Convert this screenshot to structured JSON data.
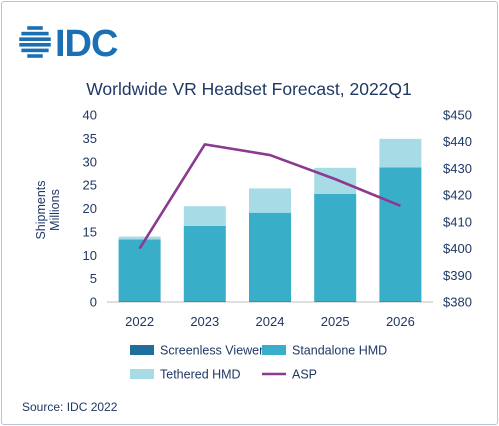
{
  "logo": {
    "text": "IDC",
    "color": "#1b6fb5"
  },
  "chart_data": {
    "type": "bar",
    "subtype": "stacked-bar-with-line",
    "title": "Worldwide VR Headset Forecast, 2022Q1",
    "ylabel": "Shipments\nMillions",
    "y2label": "",
    "categories": [
      "2022",
      "2023",
      "2024",
      "2025",
      "2026"
    ],
    "ylim": [
      0,
      40
    ],
    "y_ticks": [
      0,
      5,
      10,
      15,
      20,
      25,
      30,
      35,
      40
    ],
    "y2lim": [
      380,
      450
    ],
    "y2_ticks": [
      "$380",
      "$390",
      "$400",
      "$410",
      "$420",
      "$430",
      "$440",
      "$450"
    ],
    "y2_tick_values": [
      380,
      390,
      400,
      410,
      420,
      430,
      440,
      450
    ],
    "series": [
      {
        "name": "Screenless Viewer",
        "type": "bar",
        "axis": "left",
        "color": "#1f6e9c",
        "values": [
          0.1,
          0.1,
          0.1,
          0.1,
          0.1
        ]
      },
      {
        "name": "Standalone HMD",
        "type": "bar",
        "axis": "left",
        "color": "#39aec9",
        "values": [
          13.3,
          16.2,
          19.0,
          23.0,
          28.7
        ]
      },
      {
        "name": "Tethered HMD",
        "type": "bar",
        "axis": "left",
        "color": "#a7dce6",
        "values": [
          0.6,
          4.2,
          5.2,
          5.6,
          6.1
        ]
      },
      {
        "name": "ASP",
        "type": "line",
        "axis": "right",
        "color": "#8b3a8f",
        "values": [
          400,
          439,
          435,
          426,
          416
        ]
      }
    ],
    "legend": {
      "placement": "bottom",
      "items": [
        "Screenless Viewer",
        "Standalone HMD",
        "Tethered HMD",
        "ASP"
      ]
    },
    "grid": false
  },
  "source": "Source: IDC 2022"
}
